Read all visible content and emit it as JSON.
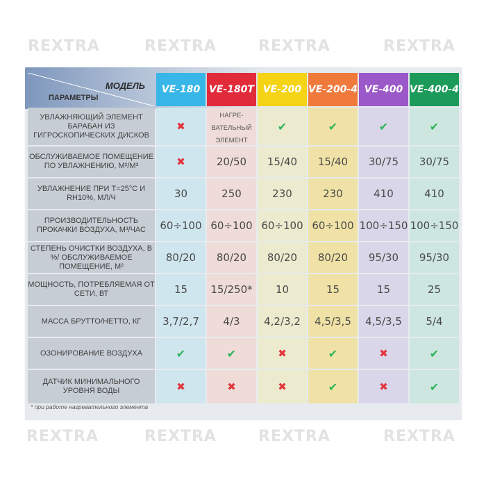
{
  "watermark": "REXTRA",
  "header": {
    "model_label": "МОДЕЛЬ",
    "params_label": "ПАРАМЕТРЫ",
    "models": [
      {
        "name": "VE-180",
        "color": "#38b6e8"
      },
      {
        "name": "VE-180T",
        "color": "#e22b3a"
      },
      {
        "name": "VE-200",
        "color": "#f5d315"
      },
      {
        "name": "VE-200-4",
        "color": "#f07a3c"
      },
      {
        "name": "VE-400",
        "color": "#9b58c8"
      },
      {
        "name": "VE-400-4",
        "color": "#1c9a5a"
      }
    ]
  },
  "rows": [
    {
      "label": "УВЛАЖНЯЮЩИЙ ЭЛЕМЕНТ БАРАБАН ИЗ ГИГРОСКОПИЧЕСКИХ ДИСКОВ",
      "cells": [
        {
          "icon": "cross-icon"
        },
        {
          "text": "НАГРЕ-ВАТЕЛЬНЫЙ ЭЛЕМЕНТ"
        },
        {
          "icon": "check-icon"
        },
        {
          "icon": "check-icon"
        },
        {
          "icon": "check-icon"
        },
        {
          "icon": "check-icon"
        }
      ]
    },
    {
      "label": "ОБСЛУЖИВАЕМОЕ ПОМЕЩЕНИЕ ПО УВЛАЖНЕНИЮ, м²/м³",
      "cells": [
        {
          "icon": "cross-icon"
        },
        {
          "text": "20/50"
        },
        {
          "text": "15/40"
        },
        {
          "text": "15/40"
        },
        {
          "text": "30/75"
        },
        {
          "text": "30/75"
        }
      ]
    },
    {
      "label": "УВЛАЖНЕНИЕ при t=25°C и RH10%, мл/ч",
      "cells": [
        {
          "text": "30"
        },
        {
          "text": "250"
        },
        {
          "text": "230"
        },
        {
          "text": "230"
        },
        {
          "text": "410"
        },
        {
          "text": "410"
        }
      ]
    },
    {
      "label": "ПРОИЗВОДИТЕЛЬНОСТЬ ПРОКАЧКИ ВОЗДУХА, м³/час",
      "cells": [
        {
          "text": "60÷100"
        },
        {
          "text": "60÷100"
        },
        {
          "text": "60÷100"
        },
        {
          "text": "60÷100"
        },
        {
          "text": "100÷150"
        },
        {
          "text": "100÷150"
        }
      ]
    },
    {
      "label": "СТЕПЕНЬ ОЧИСТКИ ВОЗДУХА, в %/ ОБСЛУЖИВАЕМОЕ ПОМЕЩЕНИЕ, м²",
      "cells": [
        {
          "text": "80/20"
        },
        {
          "text": "80/20"
        },
        {
          "text": "80/20"
        },
        {
          "text": "80/20"
        },
        {
          "text": "95/30"
        },
        {
          "text": "95/30"
        }
      ]
    },
    {
      "label": "МОЩНОСТЬ, ПОТРЕБЛЯЕМАЯ ОТ СЕТИ, Вт",
      "cells": [
        {
          "text": "15"
        },
        {
          "text": "15/250*"
        },
        {
          "text": "10"
        },
        {
          "text": "15"
        },
        {
          "text": "15"
        },
        {
          "text": "25"
        }
      ]
    },
    {
      "label": "МАССА БРУТТО/НЕТТО, кг",
      "cells": [
        {
          "text": "3,7/2,7"
        },
        {
          "text": "4/3"
        },
        {
          "text": "4,2/3,2"
        },
        {
          "text": "4,5/3,5"
        },
        {
          "text": "4,5/3,5"
        },
        {
          "text": "5/4"
        }
      ]
    },
    {
      "label": "ОЗОНИРОВАНИЕ ВОЗДУХА",
      "cells": [
        {
          "icon": "check-icon"
        },
        {
          "icon": "check-icon"
        },
        {
          "icon": "cross-icon"
        },
        {
          "icon": "check-icon"
        },
        {
          "icon": "cross-icon"
        },
        {
          "icon": "check-icon"
        }
      ]
    },
    {
      "label": "ДАТЧИК МИНИМАЛЬНОГО УРОВНЯ ВОДЫ",
      "cells": [
        {
          "icon": "cross-icon"
        },
        {
          "icon": "cross-icon"
        },
        {
          "icon": "cross-icon"
        },
        {
          "icon": "check-icon"
        },
        {
          "icon": "cross-icon"
        },
        {
          "icon": "check-icon"
        }
      ]
    }
  ],
  "column_tints": [
    "#cfe6ee",
    "#efdcd8",
    "#ecebcf",
    "#f0e2a6",
    "#d8d6e8",
    "#cde6e0"
  ],
  "footnote": "* при работе нагревательного элемента"
}
